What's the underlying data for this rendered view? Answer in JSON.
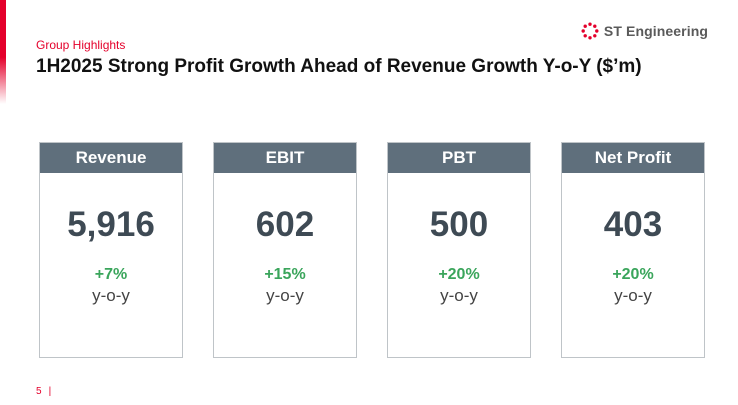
{
  "section_label": "Group Highlights",
  "title": "1H2025 Strong Profit Growth Ahead of Revenue Growth Y-o-Y ($’m)",
  "logo": {
    "text": "ST Engineering",
    "icon": "st-engineering-logo-icon"
  },
  "colors": {
    "accent": "#e4002b",
    "card_header": "#5f6f7c",
    "growth": "#3aa55b",
    "value": "#3e4a54"
  },
  "cards": [
    {
      "label": "Revenue",
      "value": "5,916",
      "growth": "+7%",
      "period": "y-o-y"
    },
    {
      "label": "EBIT",
      "value": "602",
      "growth": "+15%",
      "period": "y-o-y"
    },
    {
      "label": "PBT",
      "value": "500",
      "growth": "+20%",
      "period": "y-o-y"
    },
    {
      "label": "Net Profit",
      "value": "403",
      "growth": "+20%",
      "period": "y-o-y"
    }
  ],
  "footer": {
    "page_number": "5",
    "separator": "|"
  }
}
